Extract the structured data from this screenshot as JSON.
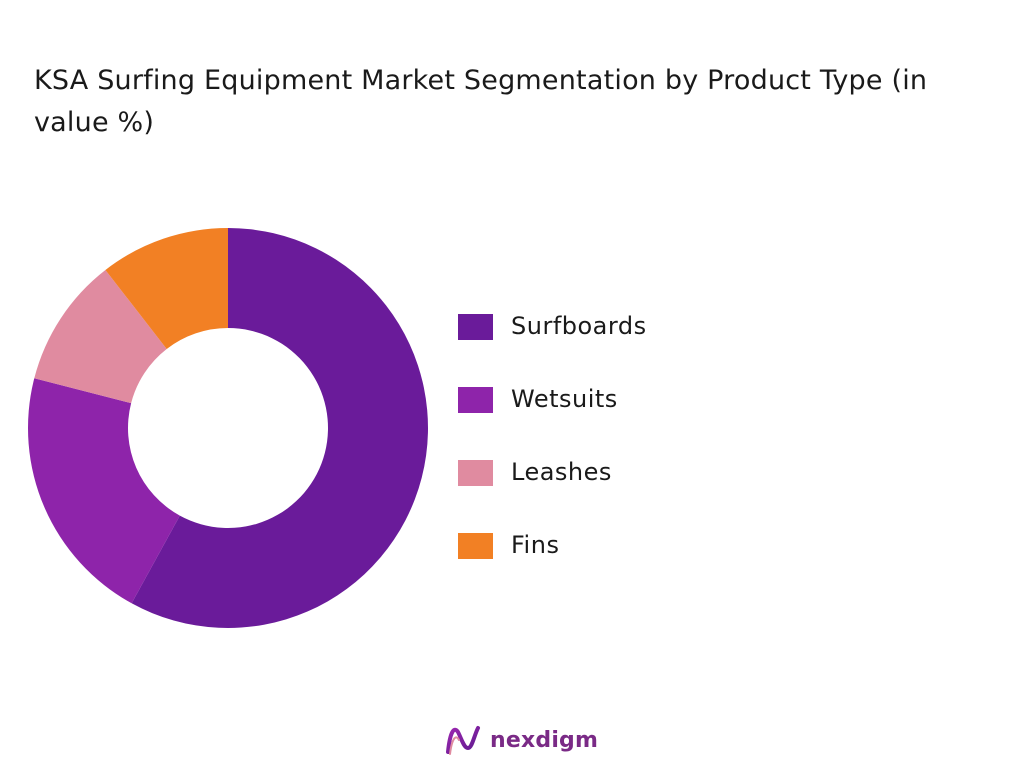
{
  "chart_data": {
    "type": "pie",
    "title": "KSA Surfing Equipment  Market Segmentation by Product Type (in value %)",
    "categories": [
      "Surfboards",
      "Wetsuits",
      "Leashes",
      "Fins"
    ],
    "values": [
      58,
      21,
      10.5,
      10.5
    ],
    "colors": [
      "#6a1b9a",
      "#8e24aa",
      "#e08ba0",
      "#f28024"
    ],
    "donut": true,
    "legend_position": "right"
  },
  "brand": {
    "name": "nexdigm",
    "color": "#7a2a86",
    "icon": "nexdigm-logo-icon"
  }
}
